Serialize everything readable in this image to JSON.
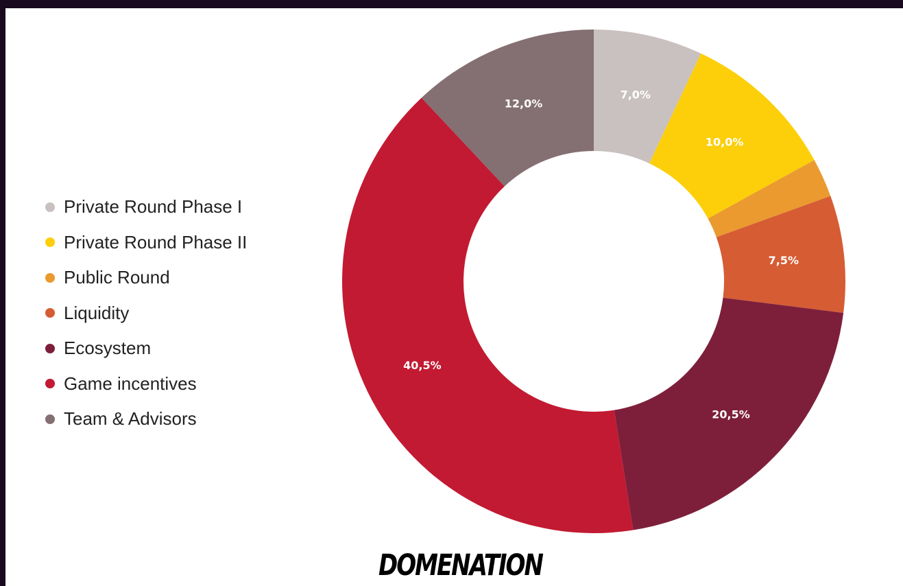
{
  "chart_data": {
    "type": "pie",
    "donut": true,
    "title": "",
    "legend_position": "left",
    "series": [
      {
        "name": "Private Round Phase I",
        "value": 7.0,
        "label": "7,0%",
        "color": "#c9c0c0"
      },
      {
        "name": "Private Round Phase II",
        "value": 10.0,
        "label": "10,0%",
        "color": "#fccf0a"
      },
      {
        "name": "Public Round",
        "value": 2.5,
        "label": "",
        "color": "#ea9a2f"
      },
      {
        "name": "Liquidity",
        "value": 7.5,
        "label": "7,5%",
        "color": "#d65c34"
      },
      {
        "name": "Ecosystem",
        "value": 20.5,
        "label": "20,5%",
        "color": "#7d1f3b"
      },
      {
        "name": "Game incentives",
        "value": 40.5,
        "label": "40,5%",
        "color": "#c21a32"
      },
      {
        "name": "Team & Advisors",
        "value": 12.0,
        "label": "12,0%",
        "color": "#846f73"
      }
    ]
  },
  "brand": {
    "logo_text": "DOMENATION"
  }
}
